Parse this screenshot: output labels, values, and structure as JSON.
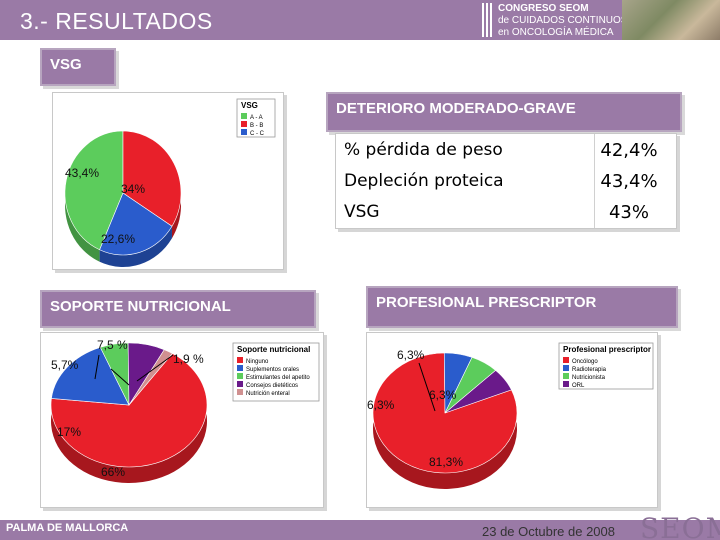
{
  "header": {
    "title": "3.- RESULTADOS",
    "congress": {
      "line1": "CONGRESO SEOM",
      "line2": "de CUIDADOS CONTINUOS",
      "line3": "en ONCOLOGÍA MÉDICA"
    }
  },
  "sections": {
    "vsg_label": "VSG",
    "deterioro_label": "DETERIORO MODERADO-GRAVE",
    "soporte_label": "SOPORTE NUTRICIONAL",
    "profesional_label": "PROFESIONAL PRESCRIPTOR"
  },
  "table": {
    "rows": [
      {
        "key": "% pérdida de peso",
        "value": "42,4%"
      },
      {
        "key": "Depleción proteica",
        "value": "43,4%"
      },
      {
        "key": "VSG",
        "value": "43%"
      }
    ]
  },
  "chart_data": [
    {
      "type": "pie",
      "title": "VSG",
      "legend": [
        "A - A",
        "B - B",
        "C - C"
      ],
      "labels": [
        "43,4%",
        "34%",
        "22,6%"
      ],
      "values": [
        43.4,
        34,
        22.6
      ],
      "colors": [
        "#5ccc5c",
        "#e8202a",
        "#2a5ccc"
      ]
    },
    {
      "type": "pie",
      "title": "Soporte nutricional",
      "legend": [
        "Ninguno",
        "Suplementos orales",
        "Estimulantes del apetito",
        "Consejos dietéticos",
        "Nutrición enteral"
      ],
      "labels": [
        "66%",
        "17%",
        "5,7%",
        "7,5 %",
        "1,9 %"
      ],
      "values": [
        66,
        17,
        5.7,
        7.5,
        1.9
      ],
      "colors": [
        "#e8202a",
        "#2a5ccc",
        "#5ccc5c",
        "#6a1a8a",
        "#d09090"
      ]
    },
    {
      "type": "pie",
      "title": "Profesional prescriptor",
      "legend": [
        "Oncólogo",
        "Radioterapia",
        "Nutricionista",
        "ORL"
      ],
      "labels": [
        "81,3%",
        "6,3%",
        "6,3%",
        "6,3%"
      ],
      "values": [
        81.3,
        6.3,
        6.3,
        6.3
      ],
      "colors": [
        "#e8202a",
        "#2a5ccc",
        "#5ccc5c",
        "#6a1a8a"
      ]
    }
  ],
  "footer": {
    "location": "PALMA DE MALLORCA",
    "date": "23 de Octubre de 2008",
    "logo": "SEOM"
  }
}
